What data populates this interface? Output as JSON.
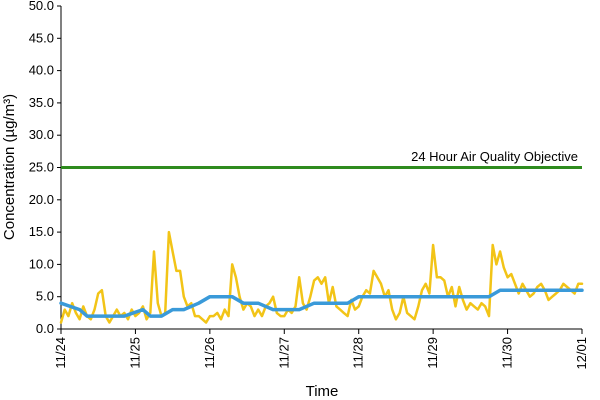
{
  "chart_data": {
    "type": "line",
    "title": "",
    "xlabel": "Time",
    "ylabel": "Concentration (µg/m³)",
    "ylim": [
      0,
      50
    ],
    "yticks": [
      "0.0",
      "5.0",
      "10.0",
      "15.0",
      "20.0",
      "25.0",
      "30.0",
      "35.0",
      "40.0",
      "45.0",
      "50.0"
    ],
    "xlim": [
      "11/24",
      "12/01"
    ],
    "xticks": [
      "11/24",
      "11/25",
      "11/26",
      "11/27",
      "11/28",
      "11/29",
      "11/30",
      "12/01"
    ],
    "grid": false,
    "legend": "none",
    "objective": {
      "label": "24 Hour Air Quality Objective",
      "value": 25,
      "color": "#2e8b1e"
    },
    "series": [
      {
        "color": "#f2c417",
        "x": [
          0,
          0.05,
          0.1,
          0.15,
          0.2,
          0.25,
          0.3,
          0.35,
          0.4,
          0.45,
          0.5,
          0.55,
          0.6,
          0.65,
          0.7,
          0.75,
          0.8,
          0.85,
          0.9,
          0.95,
          1.0,
          1.05,
          1.1,
          1.15,
          1.2,
          1.25,
          1.3,
          1.35,
          1.4,
          1.45,
          1.5,
          1.55,
          1.6,
          1.65,
          1.7,
          1.75,
          1.8,
          1.85,
          1.9,
          1.95,
          2.0,
          2.05,
          2.1,
          2.15,
          2.2,
          2.25,
          2.3,
          2.35,
          2.4,
          2.45,
          2.5,
          2.55,
          2.6,
          2.65,
          2.7,
          2.75,
          2.8,
          2.85,
          2.9,
          2.95,
          3.0,
          3.05,
          3.1,
          3.15,
          3.2,
          3.25,
          3.3,
          3.35,
          3.4,
          3.45,
          3.5,
          3.55,
          3.6,
          3.65,
          3.7,
          3.75,
          3.8,
          3.85,
          3.9,
          3.95,
          4.0,
          4.05,
          4.1,
          4.15,
          4.2,
          4.25,
          4.3,
          4.35,
          4.4,
          4.45,
          4.5,
          4.55,
          4.6,
          4.65,
          4.7,
          4.75,
          4.8,
          4.85,
          4.9,
          4.95,
          5.0,
          5.05,
          5.1,
          5.15,
          5.2,
          5.25,
          5.3,
          5.35,
          5.4,
          5.45,
          5.5,
          5.55,
          5.6,
          5.65,
          5.7,
          5.75,
          5.8,
          5.85,
          5.9,
          5.95,
          6.0,
          6.05,
          6.1,
          6.15,
          6.2,
          6.25,
          6.3,
          6.35,
          6.4,
          6.45,
          6.5,
          6.55,
          6.6,
          6.65,
          6.7,
          6.75,
          6.8,
          6.85,
          6.9,
          6.95,
          7.0
        ],
        "values": [
          1.0,
          3.0,
          2.0,
          4.0,
          2.5,
          1.5,
          3.5,
          2.0,
          1.5,
          3.0,
          5.5,
          6.0,
          2.0,
          1.0,
          2.0,
          3.0,
          2.0,
          2.5,
          1.5,
          3.0,
          2.0,
          2.5,
          3.5,
          1.5,
          2.5,
          12.0,
          4.0,
          2.0,
          2.5,
          15.0,
          12.0,
          9.0,
          9.0,
          5.0,
          3.5,
          4.0,
          2.0,
          2.0,
          1.5,
          1.0,
          2.0,
          2.0,
          2.5,
          1.5,
          3.0,
          2.0,
          10.0,
          8.0,
          5.0,
          3.0,
          4.0,
          3.5,
          2.0,
          3.0,
          2.0,
          3.5,
          4.0,
          5.0,
          2.5,
          2.0,
          2.0,
          3.0,
          2.5,
          3.5,
          8.0,
          4.0,
          3.0,
          5.0,
          7.5,
          8.0,
          7.0,
          8.0,
          4.0,
          6.5,
          3.5,
          3.0,
          2.5,
          2.0,
          4.5,
          3.0,
          3.5,
          5.0,
          6.0,
          5.5,
          9.0,
          8.0,
          7.0,
          5.0,
          6.0,
          3.0,
          1.5,
          2.5,
          5.0,
          2.5,
          2.0,
          1.5,
          3.5,
          6.0,
          7.0,
          5.5,
          13.0,
          8.0,
          8.0,
          7.5,
          5.0,
          6.5,
          3.5,
          6.5,
          4.5,
          3.0,
          4.0,
          3.5,
          3.0,
          4.0,
          3.5,
          2.0,
          13.0,
          10.0,
          12.0,
          9.5,
          8.0,
          8.5,
          7.0,
          5.5,
          7.0,
          6.0,
          5.0,
          5.5,
          6.5,
          7.0,
          6.0,
          4.5,
          5.0,
          5.5,
          6.0,
          7.0,
          6.5,
          6.0,
          5.5,
          7.0,
          7.0
        ]
      },
      {
        "color": "#3a9ad9",
        "x": [
          0,
          0.25,
          0.35,
          0.55,
          0.85,
          1.1,
          1.2,
          1.35,
          1.5,
          1.65,
          1.85,
          2.0,
          2.1,
          2.3,
          2.45,
          2.65,
          2.85,
          3.0,
          3.2,
          3.4,
          3.65,
          3.85,
          4.0,
          4.25,
          4.5,
          4.75,
          5.0,
          5.25,
          5.5,
          5.75,
          5.9,
          6.15,
          6.4,
          6.65,
          7.0
        ],
        "values": [
          4,
          3,
          2,
          2,
          2,
          3,
          2,
          2,
          3,
          3,
          4,
          5,
          5,
          5,
          4,
          4,
          3,
          3,
          3,
          4,
          4,
          4,
          5,
          5,
          5,
          5,
          5,
          5,
          5,
          5,
          6,
          6,
          6,
          6,
          6
        ]
      }
    ]
  }
}
